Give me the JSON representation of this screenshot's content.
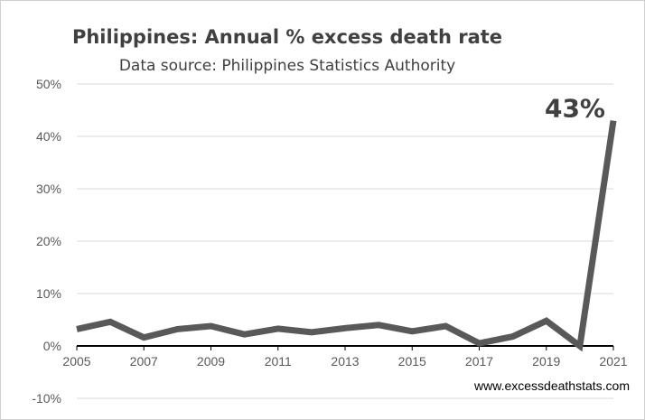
{
  "chart_data": {
    "type": "line",
    "title": "Philippines: Annual % excess death rate",
    "subtitle": "Data source: Philippines Statistics Authority",
    "xlabel": "",
    "ylabel": "",
    "x": [
      2005,
      2006,
      2007,
      2008,
      2009,
      2010,
      2011,
      2012,
      2013,
      2014,
      2015,
      2016,
      2017,
      2018,
      2019,
      2020,
      2021
    ],
    "series": [
      {
        "values": [
          3.2,
          4.6,
          1.6,
          3.2,
          3.8,
          2.2,
          3.3,
          2.6,
          3.4,
          4.0,
          2.8,
          3.8,
          0.5,
          1.8,
          4.8,
          0.0,
          43
        ]
      }
    ],
    "ylim": [
      -10,
      50
    ],
    "xlim": [
      2005,
      2021
    ],
    "y_ticks": [
      -10,
      0,
      10,
      20,
      30,
      40,
      50
    ],
    "y_tick_labels": [
      "-10%",
      "0%",
      "10%",
      "20%",
      "30%",
      "40%",
      "50%"
    ],
    "x_ticks": [
      2005,
      2007,
      2009,
      2011,
      2013,
      2015,
      2017,
      2019,
      2021
    ],
    "x_tick_labels": [
      "2005",
      "2007",
      "2009",
      "2011",
      "2013",
      "2015",
      "2017",
      "2019",
      "2021"
    ],
    "annotations": [
      {
        "x": 2021,
        "text": "43%"
      }
    ],
    "grid": true,
    "legend": "none",
    "colors": {
      "line": "#595959",
      "grid": "#d9d9d9",
      "zero_axis": "#000000"
    }
  },
  "watermark": "www.excessdeathstats.com"
}
